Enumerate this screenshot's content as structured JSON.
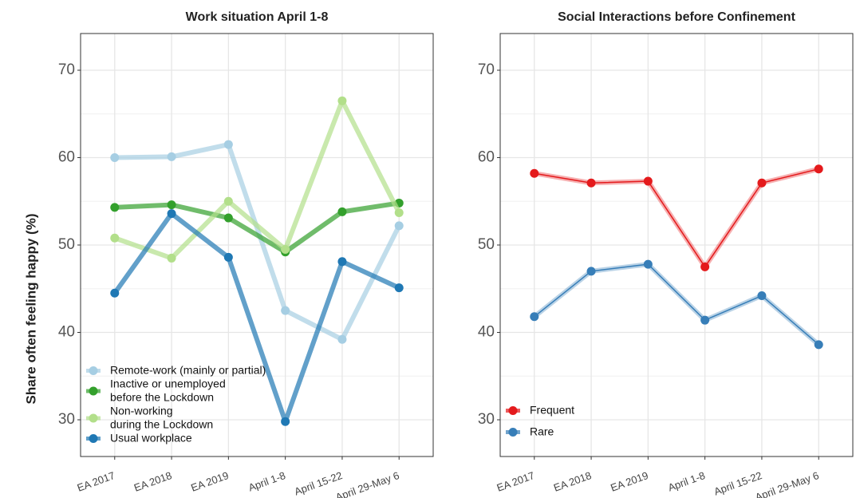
{
  "ylabel": "Share often feeling happy (%)",
  "chart_data": [
    {
      "type": "line",
      "title": "Work situation April 1-8",
      "categories": [
        "EA 2017",
        "EA 2018",
        "EA 2019",
        "April 1-8",
        "April 15-22",
        "April 29-May 6"
      ],
      "series": [
        {
          "name": "Remote-work (mainly or partial)",
          "color": "#a6cee3",
          "values": [
            60.0,
            60.1,
            61.5,
            42.5,
            39.2,
            52.2
          ]
        },
        {
          "name": "Inactive or unemployed\nbefore the Lockdown",
          "color": "#33a02c",
          "values": [
            54.3,
            54.6,
            53.1,
            49.2,
            53.8,
            54.8
          ]
        },
        {
          "name": "Non-working\nduring the Lockdown",
          "color": "#b2df8a",
          "values": [
            50.8,
            48.5,
            55.0,
            49.5,
            66.5,
            53.7
          ]
        },
        {
          "name": "Usual workplace",
          "color": "#1f78b4",
          "values": [
            44.5,
            53.6,
            48.6,
            29.8,
            48.1,
            45.1
          ]
        }
      ],
      "ylim": [
        25.8,
        74.2
      ],
      "yticks": [
        30,
        40,
        50,
        60,
        70
      ],
      "grid": true,
      "legend": "bottom-left"
    },
    {
      "type": "line",
      "title": "Social Interactions before Confinement",
      "categories": [
        "EA 2017",
        "EA 2018",
        "EA 2019",
        "April 1-8",
        "April 15-22",
        "April 29-May 6"
      ],
      "series": [
        {
          "name": "Frequent",
          "color": "#e41a1c",
          "values": [
            58.2,
            57.1,
            57.3,
            47.5,
            57.1,
            58.7
          ]
        },
        {
          "name": "Rare",
          "color": "#377eb8",
          "values": [
            41.8,
            47.0,
            47.8,
            41.4,
            44.2,
            38.6
          ]
        }
      ],
      "ylim": [
        25.8,
        74.2
      ],
      "yticks": [
        30,
        40,
        50,
        60,
        70
      ],
      "grid": true,
      "legend": "bottom-left"
    }
  ]
}
